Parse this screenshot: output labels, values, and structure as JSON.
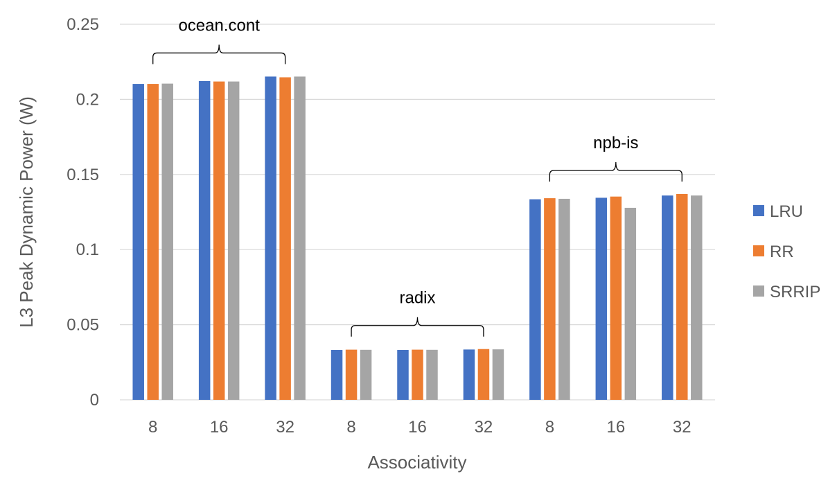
{
  "chart_data": {
    "type": "bar",
    "xlabel": "Associativity",
    "ylabel": "L3 Peak Dynamic Power (W)",
    "ylim": [
      0,
      0.25
    ],
    "yticks": [
      "0",
      "0.05",
      "0.1",
      "0.15",
      "0.2",
      "0.25"
    ],
    "ytick_values": [
      0,
      0.05,
      0.1,
      0.15,
      0.2,
      0.25
    ],
    "grid": true,
    "legend_position": "right",
    "categories": [
      "8",
      "16",
      "32",
      "8",
      "16",
      "32",
      "8",
      "16",
      "32"
    ],
    "groups": [
      {
        "label": "ocean.cont",
        "start": 0,
        "end": 2
      },
      {
        "label": "radix",
        "start": 3,
        "end": 5
      },
      {
        "label": "npb-is",
        "start": 6,
        "end": 8
      }
    ],
    "series": [
      {
        "name": "LRU",
        "color": "#4472C4",
        "values": [
          0.2103,
          0.2122,
          0.2152,
          0.0332,
          0.0332,
          0.0335,
          0.1335,
          0.1345,
          0.136
        ]
      },
      {
        "name": "RR",
        "color": "#ED7D31",
        "values": [
          0.2103,
          0.2119,
          0.2147,
          0.0334,
          0.0334,
          0.0338,
          0.1342,
          0.1353,
          0.137
        ]
      },
      {
        "name": "SRRIP",
        "color": "#A5A5A5",
        "values": [
          0.2105,
          0.2119,
          0.2152,
          0.0333,
          0.0333,
          0.0336,
          0.1338,
          0.1278,
          0.136
        ]
      }
    ]
  }
}
